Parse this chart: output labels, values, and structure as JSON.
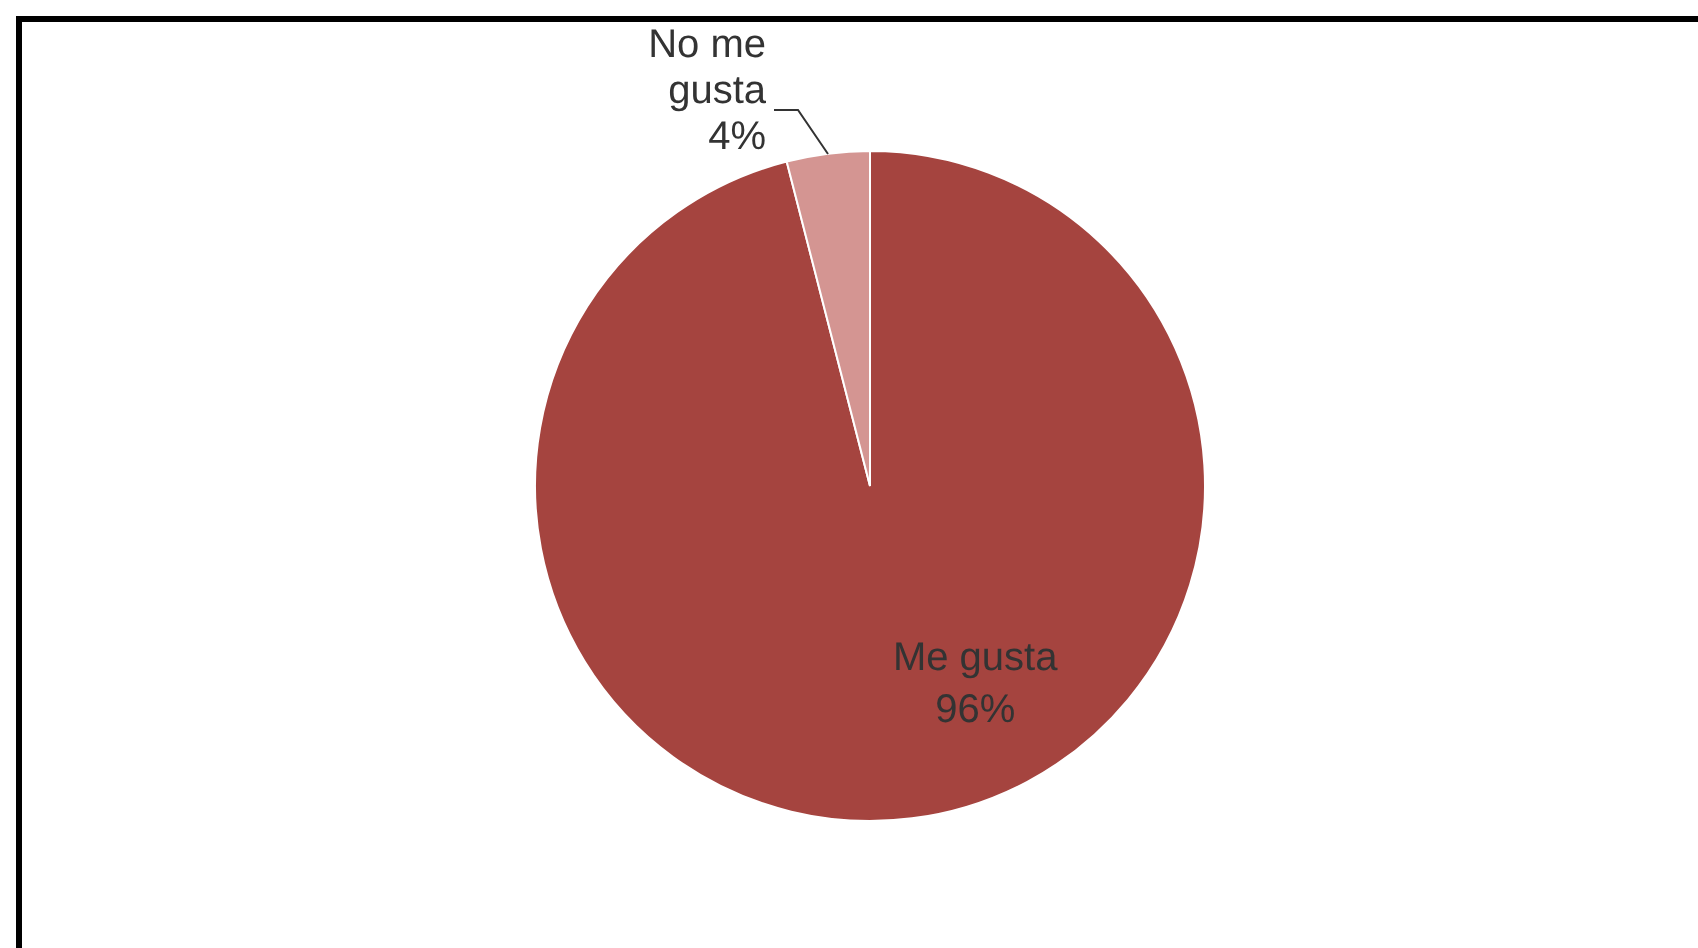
{
  "chart_data": {
    "type": "pie",
    "categories": [
      "Me gusta",
      "No me gusta"
    ],
    "values": [
      96,
      4
    ],
    "colors": [
      "#a5443f",
      "#d49592"
    ],
    "value_labels": [
      "96%",
      "4%"
    ],
    "legend": false
  }
}
